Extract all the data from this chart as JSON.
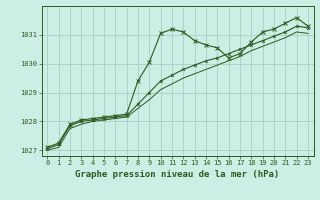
{
  "title": "Graphe pression niveau de la mer (hPa)",
  "bg_color": "#cceee4",
  "grid_color": "#aad4c8",
  "line_color": "#2d5a1b",
  "marker_color": "#2d5a1b",
  "xlim": [
    -0.5,
    23.5
  ],
  "ylim": [
    1026.8,
    1032.0
  ],
  "yticks": [
    1027,
    1028,
    1029,
    1030,
    1031
  ],
  "xticks": [
    0,
    1,
    2,
    3,
    4,
    5,
    6,
    7,
    8,
    9,
    10,
    11,
    12,
    13,
    14,
    15,
    16,
    17,
    18,
    19,
    20,
    21,
    22,
    23
  ],
  "series1_x": [
    0,
    1,
    2,
    3,
    4,
    5,
    6,
    7,
    8,
    9,
    10,
    11,
    12,
    13,
    14,
    15,
    16,
    17,
    18,
    19,
    20,
    21,
    22,
    23
  ],
  "series1_y": [
    1027.1,
    1027.25,
    1027.9,
    1028.05,
    1028.1,
    1028.15,
    1028.2,
    1028.25,
    1029.4,
    1030.05,
    1031.05,
    1031.2,
    1031.1,
    1030.8,
    1030.65,
    1030.55,
    1030.2,
    1030.35,
    1030.75,
    1031.1,
    1031.2,
    1031.4,
    1031.6,
    1031.3
  ],
  "series2_x": [
    0,
    1,
    2,
    3,
    4,
    5,
    6,
    7,
    8,
    9,
    10,
    11,
    12,
    13,
    14,
    15,
    16,
    17,
    18,
    19,
    20,
    21,
    22,
    23
  ],
  "series2_y": [
    1027.05,
    1027.2,
    1027.85,
    1028.0,
    1028.05,
    1028.1,
    1028.15,
    1028.2,
    1028.6,
    1029.0,
    1029.4,
    1029.6,
    1029.8,
    1029.95,
    1030.1,
    1030.2,
    1030.35,
    1030.5,
    1030.65,
    1030.8,
    1030.95,
    1031.1,
    1031.3,
    1031.25
  ],
  "series3_x": [
    0,
    1,
    2,
    3,
    4,
    5,
    6,
    7,
    8,
    9,
    10,
    11,
    12,
    13,
    14,
    15,
    16,
    17,
    18,
    19,
    20,
    21,
    22,
    23
  ],
  "series3_y": [
    1027.0,
    1027.1,
    1027.75,
    1027.9,
    1028.0,
    1028.05,
    1028.1,
    1028.15,
    1028.45,
    1028.75,
    1029.1,
    1029.3,
    1029.5,
    1029.65,
    1029.8,
    1029.95,
    1030.1,
    1030.25,
    1030.45,
    1030.6,
    1030.75,
    1030.9,
    1031.1,
    1031.05
  ],
  "title_fontsize": 6.5,
  "tick_fontsize": 5.0
}
